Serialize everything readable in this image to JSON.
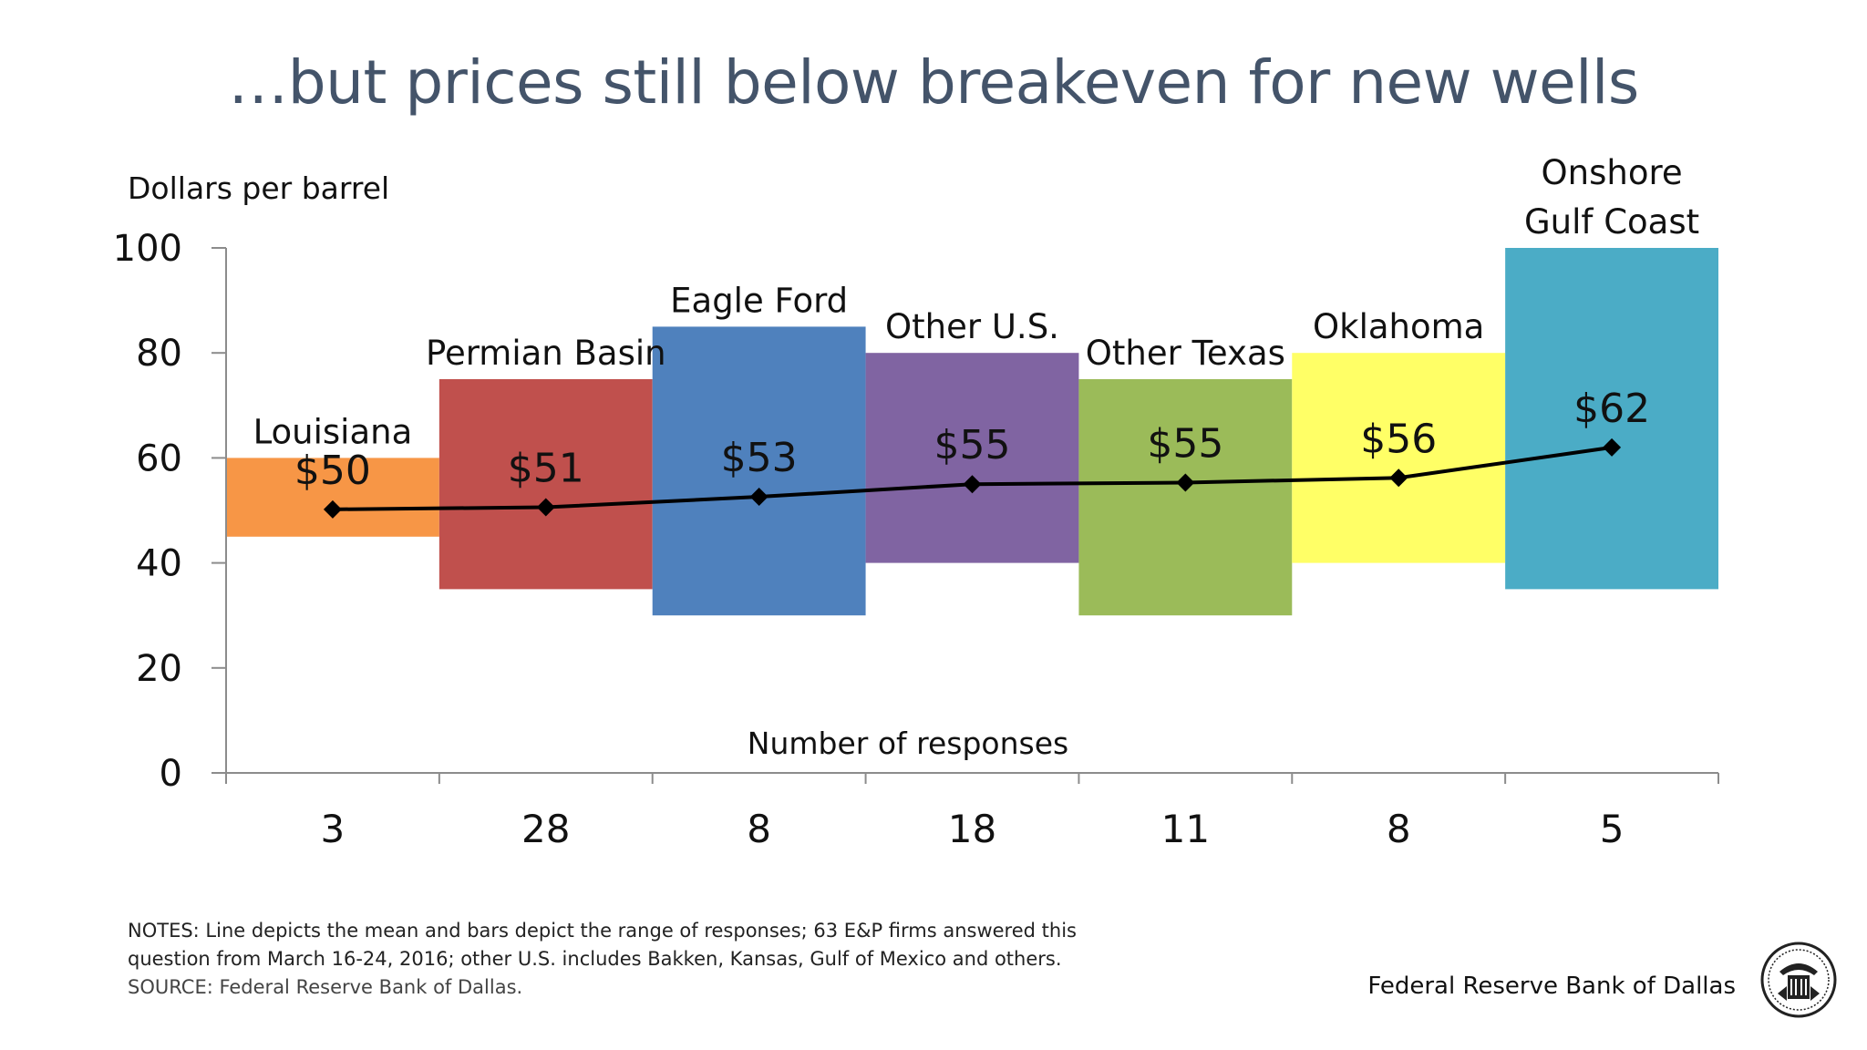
{
  "title": "…but prices still below breakeven for new wells",
  "chart_data": {
    "type": "bar",
    "subtype": "floating-range with mean line",
    "ylabel": "Dollars per barrel",
    "xlabel": "Number of responses",
    "ylim": [
      0,
      100
    ],
    "yticks": [
      "0",
      "20",
      "40",
      "60",
      "80",
      "100"
    ],
    "categories": [
      "Louisiana",
      "Permian Basin",
      "Eagle Ford",
      "Other U.S.",
      "Other Texas",
      "Oklahoma",
      "Onshore Gulf Coast"
    ],
    "category_lines": [
      [
        "Louisiana"
      ],
      [
        "Permian Basin"
      ],
      [
        "Eagle Ford"
      ],
      [
        "Other U.S."
      ],
      [
        "Other Texas"
      ],
      [
        "Oklahoma"
      ],
      [
        "Onshore",
        "Gulf Coast"
      ]
    ],
    "responses": [
      "3",
      "28",
      "8",
      "18",
      "11",
      "8",
      "5"
    ],
    "series": [
      {
        "name": "Range",
        "low": [
          45,
          35,
          30,
          40,
          30,
          40,
          35
        ],
        "high": [
          60,
          75,
          85,
          80,
          75,
          80,
          100
        ],
        "colors": [
          "#f79646",
          "#c0504d",
          "#4f81bd",
          "#8064a2",
          "#9bbb59",
          "#ffff66",
          "#4bacc6"
        ]
      },
      {
        "name": "Mean",
        "values": [
          50.2,
          50.6,
          52.6,
          55.0,
          55.3,
          56.2,
          62.0
        ],
        "labels": [
          "$50",
          "$51",
          "$53",
          "$55",
          "$55",
          "$56",
          "$62"
        ]
      }
    ],
    "grid": false,
    "legend": "none"
  },
  "notes": {
    "line1": "NOTES: Line depicts the mean and bars depict the range of responses; 63 E&P firms answered this",
    "line2": "question from March 16-24, 2016; other U.S. includes Bakken, Kansas, Gulf of Mexico and others.",
    "source": "SOURCE: Federal Reserve Bank of Dallas."
  },
  "footer": {
    "org": "Federal Reserve Bank of Dallas",
    "seal_icon": "federal-reserve-seal-icon"
  }
}
